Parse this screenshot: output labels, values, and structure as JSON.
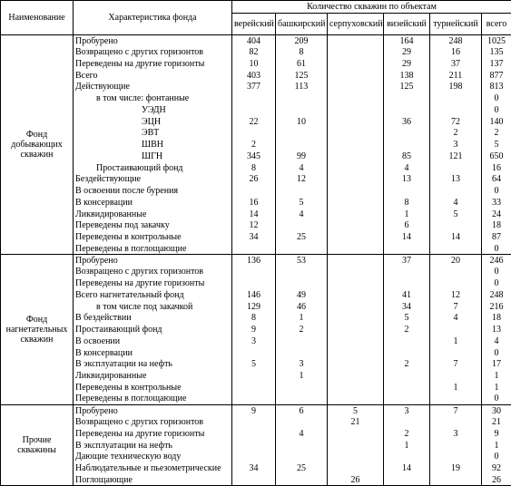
{
  "table": {
    "header": {
      "name": "Наименование",
      "characteristic": "Характеристика фонда",
      "group": "Количество скважин по объектам",
      "columns": [
        "верейский",
        "башкирский",
        "серпуховский",
        "визейский",
        "турнейский",
        "всего"
      ]
    },
    "groups": [
      {
        "name": "Фонд добывающих скважин",
        "rows": [
          {
            "label": "Пробурено",
            "values": [
              404,
              209,
              null,
              164,
              248,
              1025
            ]
          },
          {
            "label": "Возвращено с других горизонтов",
            "values": [
              82,
              8,
              null,
              29,
              16,
              135
            ]
          },
          {
            "label": "Переведены на другие горизонты",
            "values": [
              10,
              61,
              null,
              29,
              37,
              137
            ]
          },
          {
            "label": "Всего",
            "values": [
              403,
              125,
              null,
              138,
              211,
              877
            ]
          },
          {
            "label": "Действующие",
            "values": [
              377,
              113,
              null,
              125,
              198,
              813
            ]
          },
          {
            "label": "в том числе: фонтанные",
            "values": [
              null,
              null,
              null,
              null,
              null,
              0
            ]
          },
          {
            "label": "УЭДН",
            "values": [
              null,
              null,
              null,
              null,
              null,
              0
            ]
          },
          {
            "label": "ЭЦН",
            "values": [
              22,
              10,
              null,
              36,
              72,
              140
            ]
          },
          {
            "label": "ЭВТ",
            "values": [
              null,
              null,
              null,
              null,
              2,
              2
            ]
          },
          {
            "label": "ШВН",
            "values": [
              2,
              null,
              null,
              null,
              3,
              5
            ]
          },
          {
            "label": "ШГН",
            "values": [
              345,
              99,
              null,
              85,
              121,
              650
            ]
          },
          {
            "label": "Простаивающий фонд",
            "values": [
              8,
              4,
              null,
              4,
              null,
              16
            ]
          },
          {
            "label": "Бездействующие",
            "values": [
              26,
              12,
              null,
              13,
              13,
              64
            ]
          },
          {
            "label": "В освоении после бурения",
            "values": [
              null,
              null,
              null,
              null,
              null,
              0
            ]
          },
          {
            "label": "В консервации",
            "values": [
              16,
              5,
              null,
              8,
              4,
              33
            ]
          },
          {
            "label": "Ликвидированные",
            "values": [
              14,
              4,
              null,
              1,
              5,
              24
            ]
          },
          {
            "label": "Переведены под закачку",
            "values": [
              12,
              null,
              null,
              6,
              null,
              18
            ]
          },
          {
            "label": "Переведены в контрольные",
            "values": [
              34,
              25,
              null,
              14,
              14,
              87
            ]
          },
          {
            "label": "Переведены в поглощающие",
            "values": [
              null,
              null,
              null,
              null,
              null,
              0
            ]
          }
        ]
      },
      {
        "name": "Фонд нагнетательных скважин",
        "rows": [
          {
            "label": "Пробурено",
            "values": [
              136,
              53,
              null,
              37,
              20,
              246
            ]
          },
          {
            "label": "Возвращено с других горизонтов",
            "values": [
              null,
              null,
              null,
              null,
              null,
              0
            ]
          },
          {
            "label": "Переведены на другие горизонты",
            "values": [
              null,
              null,
              null,
              null,
              null,
              0
            ]
          },
          {
            "label": "Всего нагнетательный фонд",
            "values": [
              146,
              49,
              null,
              41,
              12,
              248
            ]
          },
          {
            "label": "в том числе под закачкой",
            "values": [
              129,
              46,
              null,
              34,
              7,
              216
            ]
          },
          {
            "label": "В бездействии",
            "values": [
              8,
              1,
              null,
              5,
              4,
              18
            ]
          },
          {
            "label": "Простаивающий фонд",
            "values": [
              9,
              2,
              null,
              2,
              null,
              13
            ]
          },
          {
            "label": "В освоении",
            "values": [
              3,
              null,
              null,
              null,
              1,
              4
            ]
          },
          {
            "label": "В консервации",
            "values": [
              null,
              null,
              null,
              null,
              null,
              0
            ]
          },
          {
            "label": "В эксплуатации на нефть",
            "values": [
              5,
              3,
              null,
              2,
              7,
              17
            ]
          },
          {
            "label": "Ликвидированные",
            "values": [
              null,
              1,
              null,
              null,
              null,
              1
            ]
          },
          {
            "label": "Переведены в контрольные",
            "values": [
              null,
              null,
              null,
              null,
              1,
              1
            ]
          },
          {
            "label": "Переведены в поглощающие",
            "values": [
              null,
              null,
              null,
              null,
              null,
              0
            ]
          }
        ]
      },
      {
        "name": "Прочие скважины",
        "rows": [
          {
            "label": "Пробурено",
            "values": [
              9,
              6,
              5,
              3,
              7,
              30
            ]
          },
          {
            "label": "Возвращено с других горизонтов",
            "values": [
              null,
              null,
              21,
              null,
              null,
              21
            ]
          },
          {
            "label": "Переведены на другие горизонты",
            "values": [
              null,
              4,
              null,
              2,
              3,
              9
            ]
          },
          {
            "label": "В эксплуатации на нефть",
            "values": [
              null,
              null,
              null,
              1,
              null,
              1
            ]
          },
          {
            "label": "Дающие техническую воду",
            "values": [
              null,
              null,
              null,
              null,
              null,
              0
            ]
          },
          {
            "label": "Наблюдательные и пьезометрические",
            "values": [
              34,
              25,
              null,
              14,
              19,
              92
            ]
          },
          {
            "label": "Поглощающие",
            "values": [
              null,
              null,
              26,
              null,
              null,
              26
            ]
          }
        ]
      }
    ]
  }
}
